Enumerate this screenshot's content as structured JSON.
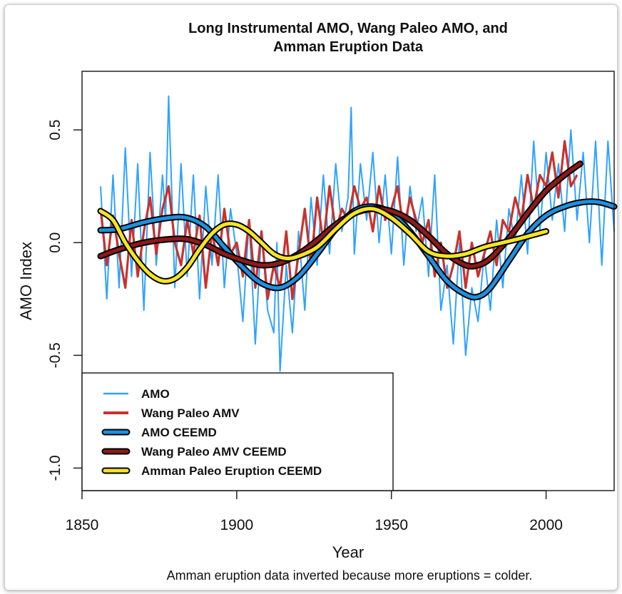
{
  "chart_data": {
    "type": "line",
    "title_line1": "Long Instrumental AMO, Wang Paleo AMO, and",
    "title_line2": "Amman Eruption Data",
    "xlabel": "Year",
    "ylabel": "AMO Index",
    "note": "Amman eruption data inverted because more eruptions = colder.",
    "xlim": [
      1850,
      2022
    ],
    "ylim": [
      -1.1,
      0.76
    ],
    "xticks": [
      1850,
      1900,
      1950,
      2000
    ],
    "xtick_labels": [
      "1850",
      "1900",
      "1950",
      "2000"
    ],
    "yticks": [
      -1.0,
      -0.5,
      0.0,
      0.5
    ],
    "ytick_labels": [
      "-1.0",
      "-0.5",
      "0.0",
      "0.5"
    ],
    "legend_position": "bottom-left",
    "colors": {
      "amo": "#2ea3ff",
      "wang": "#c8322d",
      "amo_ceemd": "#1e90e0",
      "wang_ceemd": "#8e1a17",
      "amman_ceemd": "#f6e424",
      "outline": "#000000"
    },
    "series": [
      {
        "name": "AMO",
        "style": "thin",
        "x": [
          1856,
          1858,
          1860,
          1862,
          1864,
          1866,
          1868,
          1870,
          1872,
          1874,
          1876,
          1877,
          1878,
          1880,
          1882,
          1884,
          1886,
          1888,
          1890,
          1892,
          1894,
          1896,
          1898,
          1900,
          1902,
          1904,
          1906,
          1908,
          1910,
          1912,
          1913,
          1914,
          1916,
          1918,
          1920,
          1922,
          1924,
          1926,
          1928,
          1930,
          1932,
          1934,
          1936,
          1937,
          1938,
          1940,
          1942,
          1944,
          1946,
          1948,
          1950,
          1952,
          1954,
          1956,
          1958,
          1960,
          1962,
          1964,
          1966,
          1968,
          1970,
          1972,
          1974,
          1976,
          1978,
          1980,
          1982,
          1984,
          1986,
          1988,
          1990,
          1992,
          1994,
          1996,
          1998,
          2000,
          2002,
          2004,
          2006,
          2008,
          2010,
          2012,
          2014,
          2016,
          2018,
          2020,
          2022
        ],
        "y": [
          0.25,
          -0.25,
          0.3,
          -0.2,
          0.42,
          -0.15,
          0.35,
          -0.3,
          0.4,
          -0.1,
          0.3,
          0.1,
          0.65,
          -0.2,
          0.35,
          -0.15,
          0.3,
          -0.25,
          0.25,
          -0.1,
          0.3,
          -0.2,
          0.15,
          -0.05,
          -0.35,
          0.1,
          -0.45,
          0.05,
          -0.3,
          -0.4,
          0.0,
          -0.57,
          -0.1,
          -0.4,
          0.05,
          -0.3,
          0.2,
          -0.1,
          0.3,
          -0.05,
          0.35,
          0.05,
          0.2,
          0.6,
          -0.05,
          0.35,
          0.1,
          0.4,
          0.0,
          0.3,
          -0.05,
          0.38,
          -0.1,
          0.25,
          0.05,
          0.2,
          -0.15,
          0.3,
          -0.3,
          -0.1,
          -0.45,
          0.0,
          -0.5,
          -0.2,
          -0.35,
          -0.05,
          -0.3,
          0.1,
          -0.2,
          0.15,
          0.0,
          0.3,
          -0.05,
          0.45,
          0.05,
          0.4,
          0.1,
          0.35,
          0.05,
          0.5,
          0.1,
          0.4,
          0.0,
          0.45,
          -0.1,
          0.45,
          0.05
        ]
      },
      {
        "name": "Wang Paleo AMV",
        "style": "thin",
        "x": [
          1856,
          1858,
          1860,
          1862,
          1864,
          1866,
          1868,
          1870,
          1872,
          1874,
          1876,
          1878,
          1880,
          1882,
          1884,
          1886,
          1888,
          1890,
          1892,
          1894,
          1896,
          1898,
          1900,
          1902,
          1904,
          1906,
          1908,
          1910,
          1912,
          1914,
          1916,
          1918,
          1920,
          1922,
          1924,
          1926,
          1928,
          1930,
          1932,
          1934,
          1936,
          1938,
          1940,
          1942,
          1944,
          1946,
          1948,
          1950,
          1952,
          1954,
          1956,
          1958,
          1960,
          1962,
          1964,
          1966,
          1968,
          1970,
          1972,
          1974,
          1976,
          1978,
          1980,
          1982,
          1984,
          1986,
          1988,
          1990,
          1992,
          1994,
          1996,
          1998,
          2000,
          2002,
          2004,
          2006,
          2008,
          2010
        ],
        "y": [
          0.15,
          -0.1,
          0.12,
          -0.05,
          -0.2,
          0.1,
          -0.15,
          0.05,
          0.2,
          -0.05,
          0.15,
          0.25,
          0.0,
          -0.1,
          0.1,
          -0.05,
          0.12,
          -0.2,
          0.05,
          -0.1,
          0.15,
          -0.05,
          0.0,
          -0.15,
          0.1,
          -0.2,
          0.05,
          -0.25,
          -0.1,
          -0.2,
          0.05,
          -0.25,
          -0.05,
          0.15,
          -0.1,
          0.2,
          0.0,
          0.25,
          0.05,
          0.15,
          0.1,
          0.25,
          0.15,
          0.2,
          0.05,
          0.25,
          0.1,
          0.15,
          0.25,
          0.05,
          0.2,
          0.1,
          0.0,
          0.1,
          -0.15,
          0.0,
          -0.2,
          -0.1,
          0.05,
          -0.2,
          0.0,
          -0.15,
          -0.05,
          0.05,
          -0.1,
          0.1,
          0.05,
          0.2,
          0.1,
          0.3,
          0.15,
          0.3,
          0.25,
          0.4,
          0.2,
          0.45,
          0.25,
          0.3
        ]
      },
      {
        "name": "AMO CEEMD",
        "style": "thick",
        "x": [
          1856,
          1862,
          1870,
          1878,
          1884,
          1890,
          1896,
          1902,
          1908,
          1914,
          1920,
          1926,
          1932,
          1938,
          1944,
          1950,
          1956,
          1962,
          1968,
          1974,
          1978,
          1982,
          1988,
          1994,
          2000,
          2006,
          2012,
          2017,
          2022
        ],
        "y": [
          0.055,
          0.06,
          0.09,
          0.11,
          0.11,
          0.07,
          -0.02,
          -0.11,
          -0.18,
          -0.2,
          -0.15,
          -0.05,
          0.06,
          0.14,
          0.16,
          0.13,
          0.05,
          -0.06,
          -0.17,
          -0.23,
          -0.24,
          -0.2,
          -0.08,
          0.04,
          0.12,
          0.16,
          0.18,
          0.18,
          0.16
        ]
      },
      {
        "name": "Wang Paleo AMV CEEMD",
        "style": "thick",
        "x": [
          1856,
          1862,
          1870,
          1878,
          1884,
          1890,
          1896,
          1902,
          1908,
          1914,
          1920,
          1926,
          1932,
          1938,
          1944,
          1950,
          1956,
          1962,
          1968,
          1974,
          1978,
          1982,
          1988,
          1994,
          2000,
          2006,
          2011
        ],
        "y": [
          -0.06,
          -0.03,
          0.0,
          0.015,
          0.015,
          -0.01,
          -0.05,
          -0.08,
          -0.1,
          -0.09,
          -0.05,
          0.01,
          0.08,
          0.13,
          0.15,
          0.14,
          0.1,
          0.03,
          -0.05,
          -0.1,
          -0.1,
          -0.07,
          0.02,
          0.13,
          0.23,
          0.3,
          0.35
        ]
      },
      {
        "name": "Amman Paleo Eruption CEEMD",
        "style": "thick",
        "x": [
          1856,
          1860,
          1864,
          1868,
          1872,
          1876,
          1880,
          1884,
          1888,
          1892,
          1896,
          1900,
          1904,
          1908,
          1912,
          1916,
          1920,
          1926,
          1932,
          1938,
          1944,
          1950,
          1956,
          1962,
          1968,
          1974,
          1980,
          1986,
          1992,
          2000
        ],
        "y": [
          0.14,
          0.1,
          0.0,
          -0.08,
          -0.14,
          -0.17,
          -0.16,
          -0.11,
          -0.03,
          0.04,
          0.08,
          0.08,
          0.05,
          0.0,
          -0.05,
          -0.07,
          -0.06,
          -0.02,
          0.06,
          0.13,
          0.15,
          0.11,
          0.04,
          -0.04,
          -0.06,
          -0.05,
          -0.02,
          0.0,
          0.02,
          0.05
        ]
      }
    ]
  }
}
